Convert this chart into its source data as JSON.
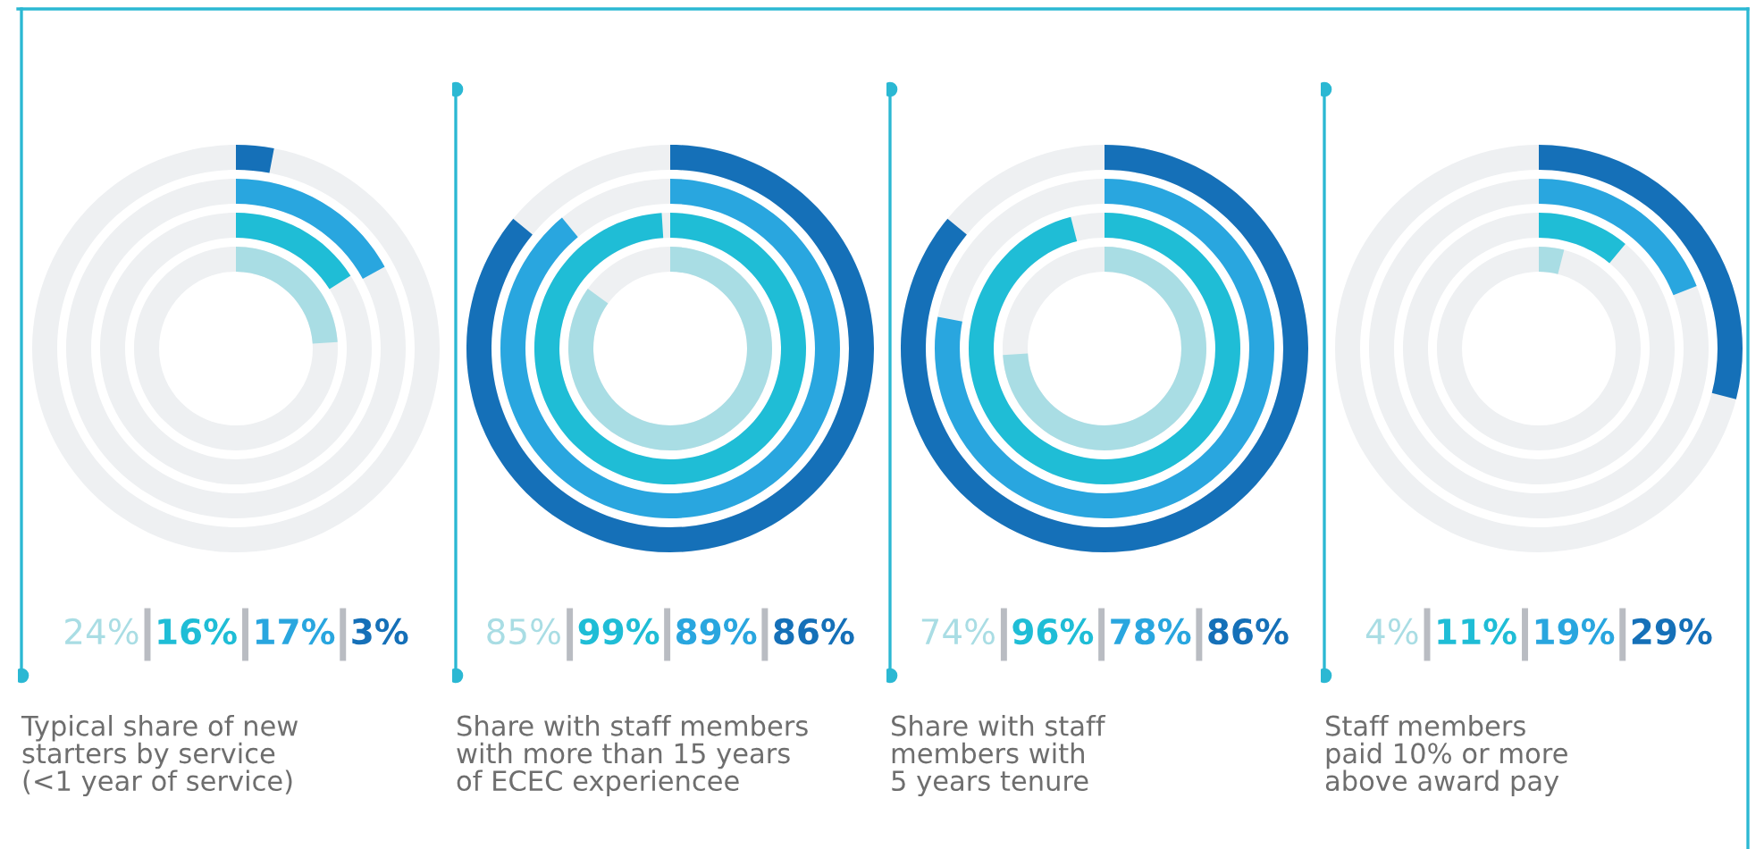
{
  "chart_data": [
    {
      "type": "other",
      "title": "Typical share of new\nstarters by service\n(<1 year of service)",
      "values": [
        24,
        16,
        17,
        3
      ],
      "value_labels": [
        "24%",
        "16%",
        "17%",
        "3%"
      ],
      "colors": [
        "#a9dde4",
        "#1fbdd6",
        "#29a6df",
        "#1570b8"
      ]
    },
    {
      "type": "other",
      "title": "Share with staff members\nwith more than 15 years\nof ECEC experiencee",
      "values": [
        85,
        99,
        89,
        86
      ],
      "value_labels": [
        "85%",
        "99%",
        "89%",
        "86%"
      ],
      "colors": [
        "#a9dde4",
        "#1fbdd6",
        "#29a6df",
        "#1570b8"
      ]
    },
    {
      "type": "other",
      "title": "Share with staff\nmembers with\n5 years tenure",
      "values": [
        74,
        96,
        78,
        86
      ],
      "value_labels": [
        "74%",
        "96%",
        "78%",
        "86%"
      ],
      "colors": [
        "#a9dde4",
        "#1fbdd6",
        "#29a6df",
        "#1570b8"
      ]
    },
    {
      "type": "other",
      "title": "Staff members\npaid 10% or more\nabove award pay",
      "values": [
        4,
        11,
        19,
        29
      ],
      "value_labels": [
        "4%",
        "11%",
        "19%",
        "29%"
      ],
      "colors": [
        "#a9dde4",
        "#1fbdd6",
        "#29a6df",
        "#1570b8"
      ]
    }
  ]
}
